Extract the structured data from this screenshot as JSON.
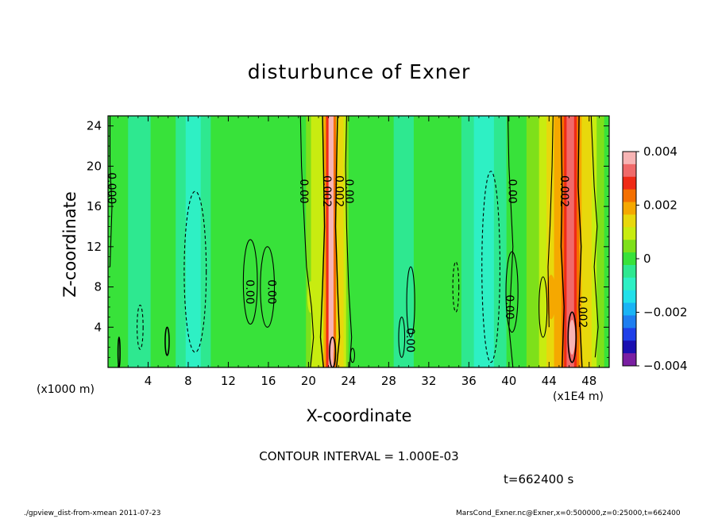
{
  "chart_data": {
    "type": "heatmap",
    "title": "disturbunce of Exner",
    "xlabel": "X-coordinate",
    "ylabel": "Z-coordinate",
    "x_unit_left": "(x1000 m)",
    "x_unit_right": "(x1E4 m)",
    "xlim": [
      0,
      50
    ],
    "ylim": [
      0,
      25
    ],
    "xticks": [
      4,
      8,
      12,
      16,
      20,
      24,
      28,
      32,
      36,
      40,
      44,
      48
    ],
    "yticks": [
      4,
      8,
      12,
      16,
      20,
      24
    ],
    "colorbar": {
      "levels": [
        -0.004,
        -0.0035,
        -0.003,
        -0.0025,
        -0.002,
        -0.0015,
        -0.001,
        -0.0005,
        0,
        0.0005,
        0.001,
        0.0015,
        0.002,
        0.0025,
        0.003,
        0.0035,
        0.004
      ],
      "colors": [
        "#7a1fa2",
        "#1a0fb0",
        "#1f3fe8",
        "#1e7ef0",
        "#19b4f5",
        "#22e0ea",
        "#2ef0c4",
        "#2ee890",
        "#38e23a",
        "#7ee01a",
        "#c8ec10",
        "#e8d80c",
        "#f5a800",
        "#f47000",
        "#ef2a16",
        "#f06a6a",
        "#f7b4b4"
      ],
      "tick_labels": [
        "0.004",
        "0.002",
        "0",
        "−0.002",
        "−0.004"
      ]
    },
    "contour_labels": [
      {
        "text": "0.000",
        "x": 0.3,
        "y": 17.8
      },
      {
        "text": "0.00",
        "x": 19.5,
        "y": 17.5
      },
      {
        "text": "0.002",
        "x": 21.8,
        "y": 17.5
      },
      {
        "text": "0.002",
        "x": 23.0,
        "y": 17.5
      },
      {
        "text": "0.00",
        "x": 24.0,
        "y": 17.5
      },
      {
        "text": "0.00",
        "x": 40.3,
        "y": 17.5
      },
      {
        "text": "0.002",
        "x": 45.5,
        "y": 17.5
      },
      {
        "text": "0.00",
        "x": 14.1,
        "y": 7.5
      },
      {
        "text": "0.00",
        "x": 16.3,
        "y": 7.5
      },
      {
        "text": "0.00",
        "x": 40.0,
        "y": 6.0
      },
      {
        "text": "0.002",
        "x": 47.3,
        "y": 5.5
      },
      {
        "text": "0.00",
        "x": 30.1,
        "y": 2.7
      }
    ],
    "field_features": [
      {
        "kind": "positive_core",
        "x_center": 22.2,
        "width": 0.9,
        "value": 0.004
      },
      {
        "kind": "positive_core",
        "x_center": 46.2,
        "width": 1.6,
        "value": 0.0035
      },
      {
        "kind": "positive_broad",
        "x_center": 45.5,
        "width": 6.0,
        "value": 0.002
      },
      {
        "kind": "negative_broad",
        "x_center": 8.5,
        "width": 2.5,
        "value": -0.001
      },
      {
        "kind": "negative_broad",
        "x_center": 37.5,
        "width": 3.0,
        "value": -0.001
      }
    ],
    "contour_interval": "CONTOUR INTERVAL = 1.000E-03",
    "time": "t=662400 s"
  },
  "footer": {
    "left": "./gpview_dist-from-xmean  2011-07-23",
    "right": "MarsCond_Exner.nc@Exner,x=0:500000,z=0:25000,t=662400"
  }
}
